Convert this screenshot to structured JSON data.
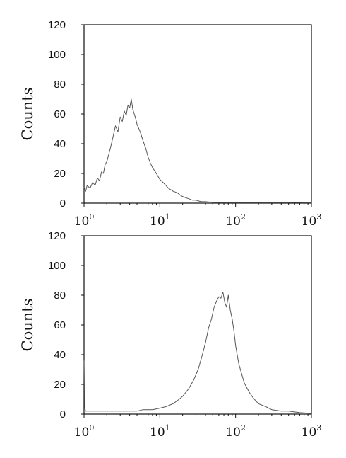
{
  "chart_data": [
    {
      "type": "line",
      "title": "",
      "xlabel": "",
      "ylabel": "Counts",
      "xscale": "log",
      "xlim": [
        1,
        1000
      ],
      "ylim": [
        0,
        120
      ],
      "grid": false,
      "legend": "none",
      "yticks": [
        "0",
        "20",
        "40",
        "60",
        "80",
        "100",
        "120"
      ],
      "xticks": [
        {
          "base": "10",
          "exp": "0"
        },
        {
          "base": "10",
          "exp": "1"
        },
        {
          "base": "10",
          "exp": "2"
        },
        {
          "base": "10",
          "exp": "3"
        }
      ],
      "series": [
        {
          "color": "#555555",
          "x": [
            1.0,
            1.05,
            1.1,
            1.2,
            1.3,
            1.4,
            1.5,
            1.6,
            1.7,
            1.8,
            1.9,
            2.0,
            2.2,
            2.4,
            2.6,
            2.8,
            3.0,
            3.2,
            3.4,
            3.6,
            3.8,
            4.0,
            4.2,
            4.4,
            4.6,
            4.8,
            5.0,
            5.5,
            6.0,
            6.5,
            7.0,
            7.5,
            8.0,
            9.0,
            10,
            11,
            12,
            13,
            14,
            15,
            17,
            19,
            21,
            24,
            27,
            30,
            35,
            40,
            50,
            60,
            80,
            100,
            150,
            200,
            300,
            500,
            1000
          ],
          "y": [
            11,
            8,
            12,
            10,
            14,
            12,
            17,
            15,
            21,
            20,
            26,
            28,
            36,
            44,
            52,
            48,
            58,
            55,
            62,
            59,
            66,
            64,
            70,
            63,
            60,
            57,
            53,
            48,
            42,
            37,
            31,
            27,
            24,
            20,
            16,
            14,
            12,
            10,
            9,
            8,
            7,
            5,
            4,
            3,
            2,
            2,
            1,
            1,
            0.5,
            0.5,
            0.5,
            0.5,
            0.5,
            0.5,
            0.5,
            0.5,
            0.3
          ]
        }
      ]
    },
    {
      "type": "line",
      "title": "",
      "xlabel": "",
      "ylabel": "Counts",
      "xscale": "log",
      "xlim": [
        1,
        1000
      ],
      "ylim": [
        0,
        120
      ],
      "grid": false,
      "legend": "none",
      "yticks": [
        "0",
        "20",
        "40",
        "60",
        "80",
        "100",
        "120"
      ],
      "xticks": [
        {
          "base": "10",
          "exp": "0"
        },
        {
          "base": "10",
          "exp": "1"
        },
        {
          "base": "10",
          "exp": "2"
        },
        {
          "base": "10",
          "exp": "3"
        }
      ],
      "series": [
        {
          "color": "#555555",
          "x": [
            1.0,
            1.02,
            1.05,
            1.1,
            1.5,
            2,
            3,
            4,
            5,
            6,
            8,
            10,
            12,
            15,
            18,
            20,
            24,
            28,
            32,
            36,
            40,
            44,
            48,
            52,
            56,
            60,
            64,
            68,
            72,
            76,
            80,
            85,
            90,
            95,
            100,
            110,
            120,
            130,
            150,
            170,
            200,
            250,
            300,
            400,
            500,
            700,
            1000
          ],
          "y": [
            36,
            4,
            2,
            2,
            2,
            2,
            2,
            2,
            2,
            3,
            3,
            4,
            5,
            7,
            10,
            12,
            17,
            23,
            30,
            39,
            48,
            58,
            64,
            72,
            76,
            79,
            78,
            82,
            75,
            72,
            80,
            70,
            64,
            56,
            46,
            34,
            27,
            21,
            15,
            11,
            7,
            5,
            3,
            2,
            2,
            1,
            0.5
          ]
        }
      ]
    }
  ]
}
